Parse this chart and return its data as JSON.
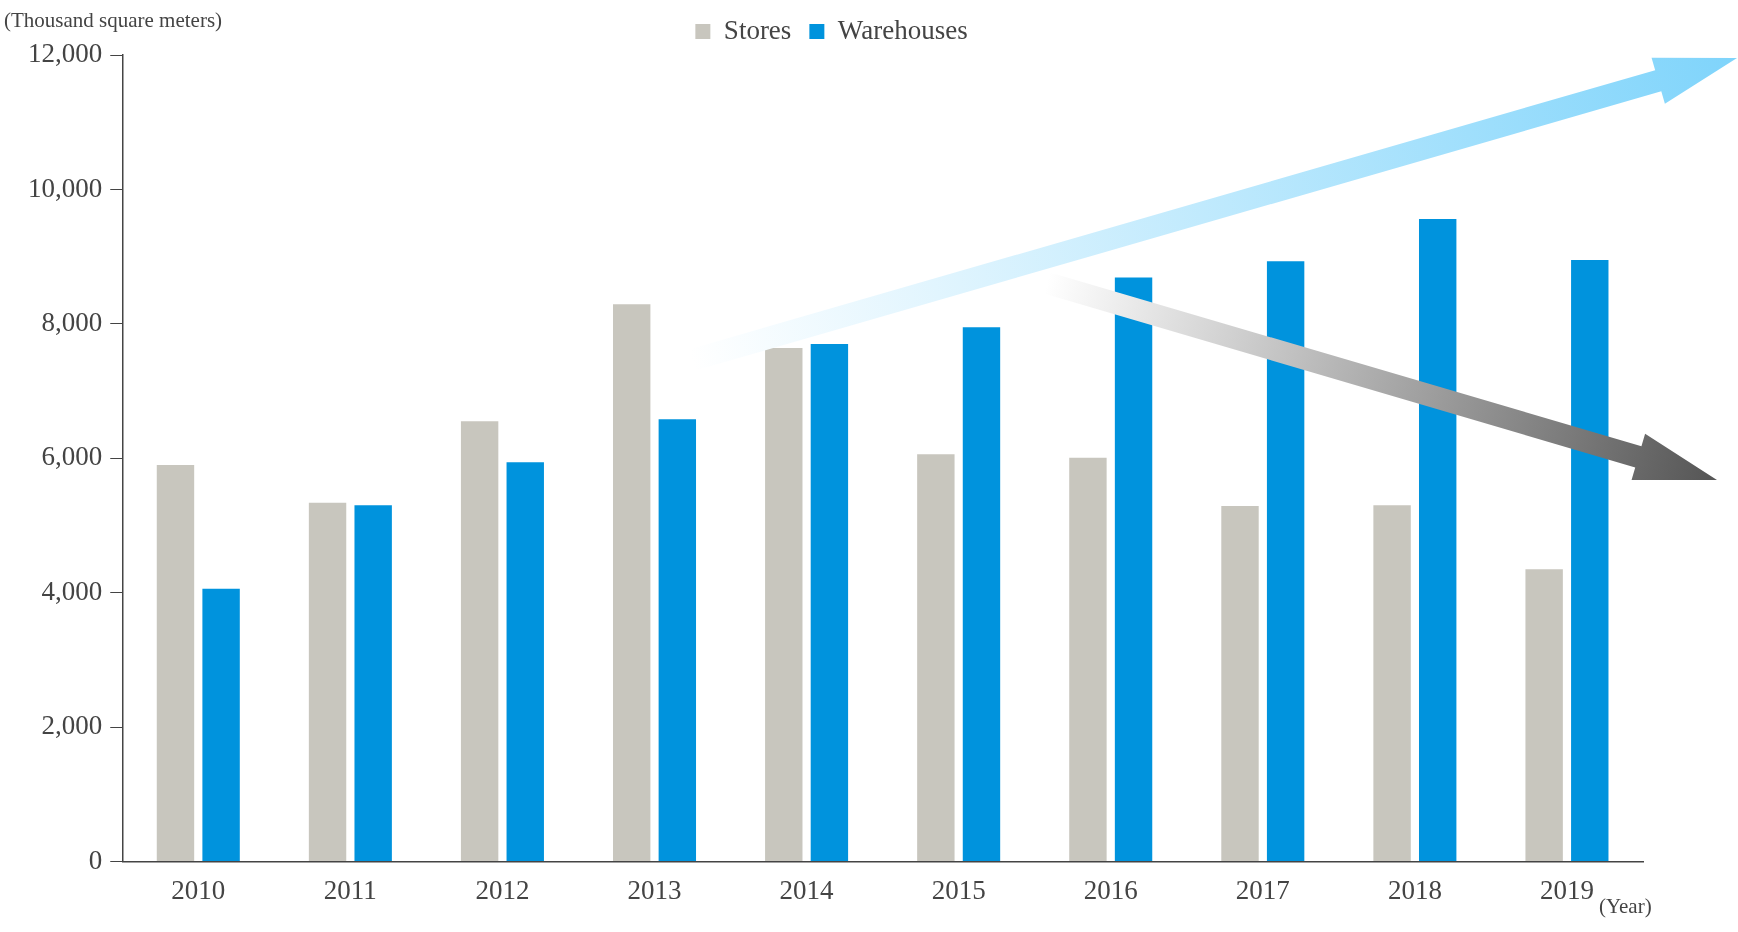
{
  "chart_data": {
    "type": "bar",
    "ylabel": "(Thousand square meters)",
    "xlabel": "(Year)",
    "categories": [
      "2010",
      "2011",
      "2012",
      "2013",
      "2014",
      "2015",
      "2016",
      "2017",
      "2018",
      "2019"
    ],
    "series": [
      {
        "name": "Stores",
        "color": "#c8c6be",
        "values": [
          5900,
          5340,
          6550,
          8290,
          7640,
          6060,
          6010,
          5290,
          5300,
          4350
        ]
      },
      {
        "name": "Warehouses",
        "color": "#0093dd",
        "values": [
          4060,
          5300,
          5940,
          6580,
          7700,
          7950,
          8690,
          8930,
          9560,
          8950
        ]
      }
    ],
    "ylim": [
      0,
      12000
    ],
    "yticks": [
      {
        "value": 0,
        "label": "0"
      },
      {
        "value": 2000,
        "label": "2,000"
      },
      {
        "value": 4000,
        "label": "4,000"
      },
      {
        "value": 6000,
        "label": "6,000"
      },
      {
        "value": 8000,
        "label": "8,000"
      },
      {
        "value": 10000,
        "label": "10,000"
      },
      {
        "value": 12000,
        "label": "12,000"
      }
    ],
    "grid": false,
    "legend": "top"
  }
}
